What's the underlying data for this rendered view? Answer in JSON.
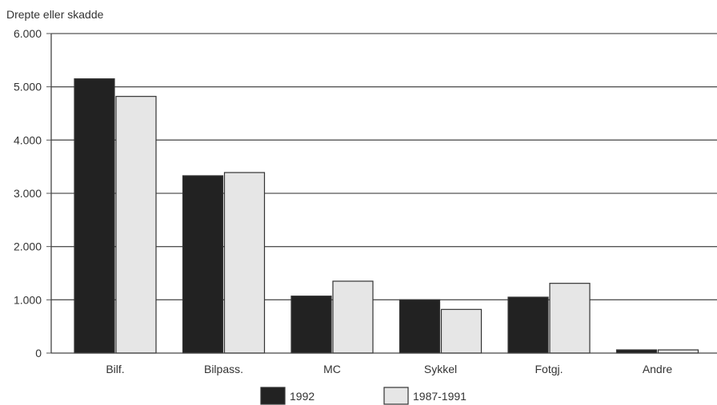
{
  "chart_data": {
    "type": "bar",
    "title": "",
    "ylabel": "Drepte eller skadde",
    "xlabel": "",
    "categories": [
      "Bilf.",
      "Bilpass.",
      "MC",
      "Sykkel",
      "Fotgj.",
      "Andre"
    ],
    "series": [
      {
        "name": "1992",
        "values": [
          5150,
          3330,
          1070,
          1000,
          1050,
          60
        ],
        "color": "#222222"
      },
      {
        "name": "1987-1991",
        "values": [
          4820,
          3390,
          1350,
          820,
          1310,
          60
        ],
        "color": "#e6e6e6"
      }
    ],
    "ylim": [
      0,
      6000
    ],
    "yticks": [
      0,
      1000,
      2000,
      3000,
      4000,
      5000,
      6000
    ],
    "ytick_labels": [
      "0",
      "1.000",
      "2.000",
      "3.000",
      "4.000",
      "5.000",
      "6.000"
    ],
    "grid": true,
    "legend": "bottom"
  }
}
